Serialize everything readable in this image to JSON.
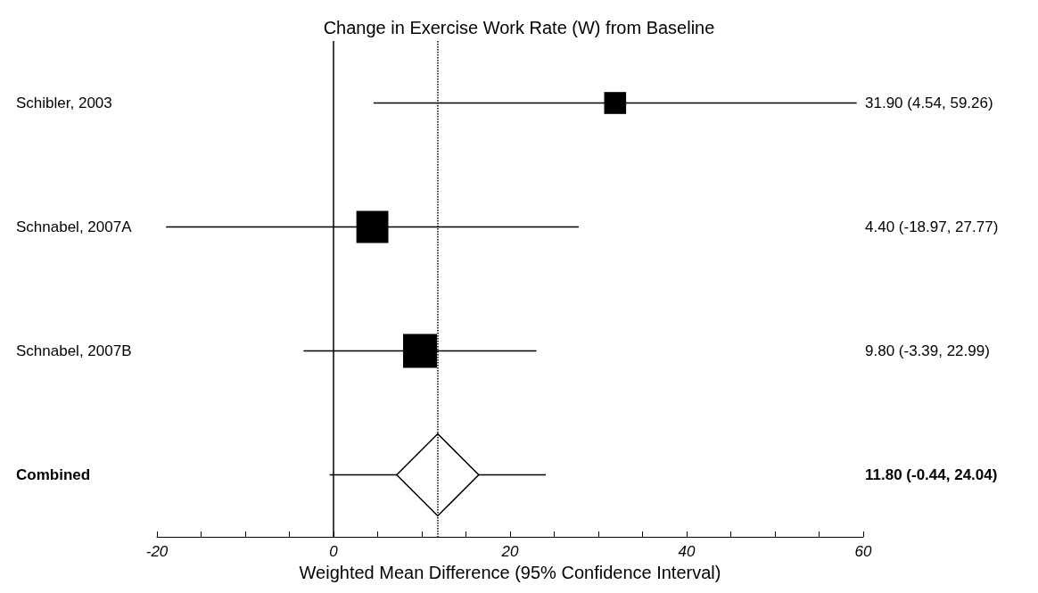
{
  "chart_data": {
    "type": "scatter",
    "orientation": "horizontal",
    "title": "Change in Exercise Work Rate (W) from Baseline",
    "xlabel": "Weighted Mean Difference (95% Confidence Interval)",
    "categories": [
      "Schibler, 2003",
      "Schnabel, 2007A",
      "Schnabel, 2007B",
      "Combined"
    ],
    "xlim": [
      -20,
      60
    ],
    "xticks": [
      -20,
      {
        "value": -15,
        "label": null
      },
      {
        "value": -10,
        "label": null
      },
      {
        "value": -5,
        "label": null
      },
      0,
      {
        "value": 5,
        "label": null
      },
      {
        "value": 10,
        "label": null
      },
      {
        "value": 15,
        "label": null
      },
      20,
      {
        "value": 25,
        "label": null
      },
      {
        "value": 30,
        "label": null
      },
      {
        "value": 35,
        "label": null
      },
      40,
      {
        "value": 45,
        "label": null
      },
      {
        "value": 50,
        "label": null
      },
      {
        "value": 55,
        "label": null
      },
      60
    ],
    "series": [
      {
        "type": "bubble",
        "color": "#000000",
        "marker": "square",
        "values": [
          31.9,
          4.4,
          9.8,
          null
        ],
        "errors": [
          [
            4.54,
            59.26
          ],
          [
            -18.97,
            27.77
          ],
          [
            -3.39,
            22.99
          ],
          null
        ],
        "sizes": [
          0.42,
          0.89,
          1,
          null
        ]
      },
      {
        "color": "#000000",
        "marker": "diamond",
        "values": [
          null,
          null,
          null,
          11.8
        ],
        "errors": [
          null,
          null,
          null,
          [
            -0.44,
            24.04
          ]
        ]
      }
    ],
    "annotations": [
      "31.90 (4.54, 59.26)",
      "4.40 (-18.97, 27.77)",
      "9.80 (-3.39, 22.99)",
      "11.80 (-0.44, 24.04)"
    ],
    "ref_lines": [
      {
        "axis": "x",
        "value": 0,
        "line_style": "solid"
      },
      {
        "axis": "x",
        "value": 11.8,
        "line_style": "dotted"
      }
    ]
  }
}
